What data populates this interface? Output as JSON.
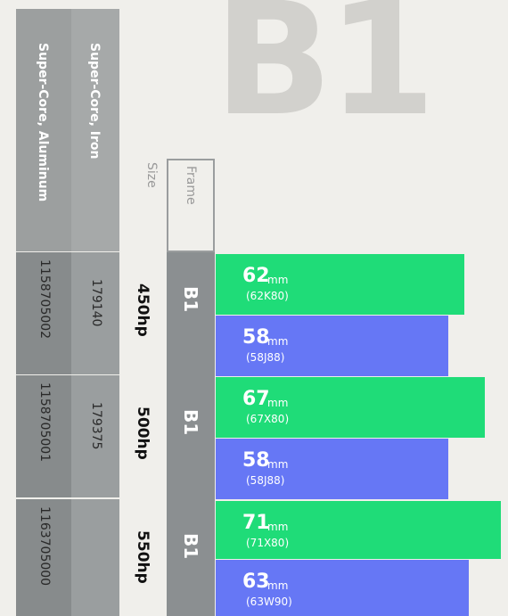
{
  "watermark": "B1",
  "columns": {
    "aluminum": "Super-Core, Aluminum",
    "iron": "Super-Core, Iron",
    "size": "Size",
    "frame": "Frame"
  },
  "colors": [
    "#1fdc78",
    "#6677f5"
  ],
  "rows": [
    {
      "aluminum": "1158705002",
      "iron": "179140",
      "hp": "450hp",
      "frame": "B1",
      "bars": [
        {
          "value": 62,
          "unit": "mm",
          "code": "(62K80)"
        },
        {
          "value": 58,
          "unit": "mm",
          "code": "(58J88)"
        }
      ]
    },
    {
      "aluminum": "1158705001",
      "iron": "179375",
      "hp": "500hp",
      "frame": "B1",
      "bars": [
        {
          "value": 67,
          "unit": "mm",
          "code": "(67X80)"
        },
        {
          "value": 58,
          "unit": "mm",
          "code": "(58J88)"
        }
      ]
    },
    {
      "aluminum": "1163705000",
      "hp": "550hp",
      "frame": "B1",
      "bars": [
        {
          "value": 71,
          "unit": "mm",
          "code": "(71X80)"
        },
        {
          "value": 63,
          "unit": "mm",
          "code": "(63W90)"
        }
      ]
    }
  ]
}
